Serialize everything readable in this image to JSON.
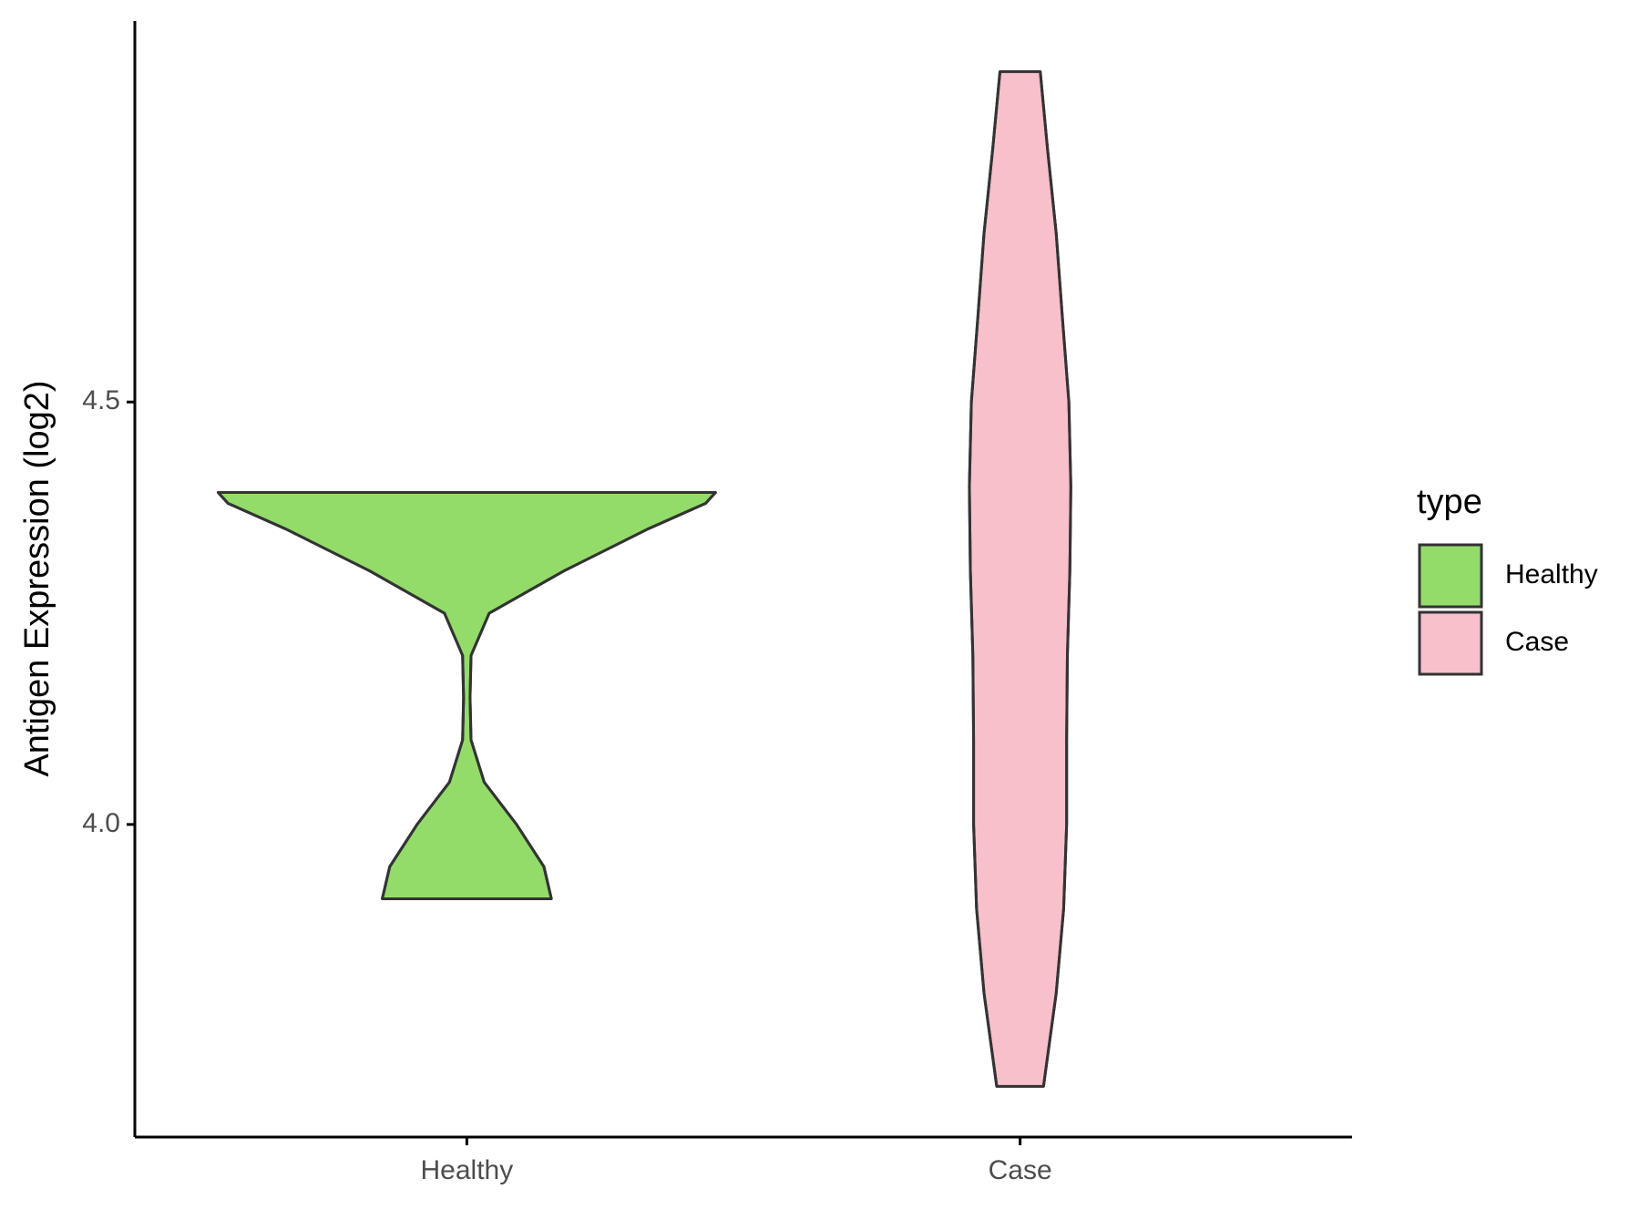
{
  "chart_data": {
    "type": "violin",
    "y_label": "Antigen Expression (log2)",
    "categories": [
      "Healthy",
      "Case"
    ],
    "legend_title": "type",
    "ylim": [
      3.63,
      4.951
    ],
    "yticks": [
      {
        "value": 4.0,
        "label": "4.0"
      },
      {
        "value": 4.5,
        "label": "4.5"
      }
    ],
    "series": [
      {
        "name": "Healthy",
        "color": "#93dc6a",
        "y": [
          3.912,
          3.95,
          4.0,
          4.05,
          4.1,
          4.15,
          4.2,
          4.25,
          4.3,
          4.35,
          4.38,
          4.393
        ],
        "density": [
          0.34,
          0.31,
          0.2,
          0.07,
          0.017,
          0.013,
          0.017,
          0.09,
          0.39,
          0.73,
          0.96,
          1.0
        ]
      },
      {
        "name": "Case",
        "color": "#f7c0cb",
        "y": [
          3.69,
          3.8,
          3.9,
          4.0,
          4.1,
          4.2,
          4.3,
          4.4,
          4.5,
          4.6,
          4.7,
          4.8,
          4.891
        ],
        "density": [
          0.094,
          0.145,
          0.175,
          0.187,
          0.187,
          0.19,
          0.2,
          0.204,
          0.196,
          0.17,
          0.145,
          0.11,
          0.081
        ]
      }
    ]
  }
}
